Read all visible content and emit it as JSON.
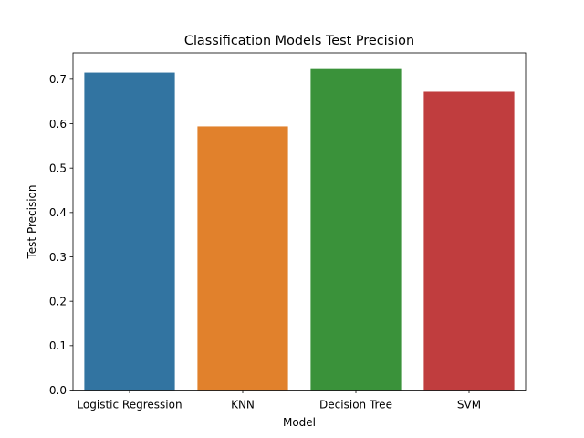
{
  "chart_data": {
    "type": "bar",
    "title": "Classification Models Test Precision",
    "xlabel": "Model",
    "ylabel": "Test Precision",
    "categories": [
      "Logistic Regression",
      "KNN",
      "Decision Tree",
      "SVM"
    ],
    "values": [
      0.715,
      0.594,
      0.723,
      0.672
    ],
    "colors": [
      "#3274a1",
      "#e1812c",
      "#3a923a",
      "#c03d3e"
    ],
    "ylim": [
      0,
      0.7593
    ],
    "yticks": [
      0.0,
      0.1,
      0.2,
      0.3,
      0.4,
      0.5,
      0.6,
      0.7
    ],
    "ytick_labels": [
      "0.0",
      "0.1",
      "0.2",
      "0.3",
      "0.4",
      "0.5",
      "0.6",
      "0.7"
    ],
    "grid": false,
    "legend": "none"
  }
}
